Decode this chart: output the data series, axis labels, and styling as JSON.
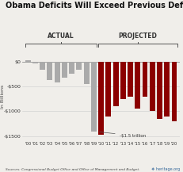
{
  "title": "Obama Deficits Will Exceed Previous Deficits",
  "ylabel": "In Billions",
  "ylim": [
    -1600,
    200
  ],
  "yticks": [
    0,
    -500,
    -1000,
    -1500
  ],
  "ytick_labels": [
    "$0",
    "-$500",
    "-$1000",
    "-$1500"
  ],
  "source_text": "Sources: Congressional Budget Office and Office of Management and Budget.",
  "annotation": "-$1.5 trillion",
  "bg_color": "#f0eeea",
  "actual_color": "#aaaaaa",
  "projected_color": "#8b0000",
  "categories": [
    "'00",
    "'01",
    "'02",
    "'03",
    "'04",
    "'05",
    "'06",
    "'07",
    "'08",
    "'09",
    "'10",
    "'11",
    "'12",
    "'13",
    "'14",
    "'15",
    "'16",
    "'17",
    "'18",
    "'19",
    "'20"
  ],
  "values": [
    20,
    -30,
    -160,
    -380,
    -415,
    -320,
    -250,
    -165,
    -460,
    -1413,
    -1470,
    -1100,
    -900,
    -750,
    -700,
    -950,
    -700,
    -1000,
    -1150,
    -1100,
    -1200
  ],
  "actual_count": 10,
  "actual_label": "ACTUAL",
  "projected_label": "PROJECTED"
}
